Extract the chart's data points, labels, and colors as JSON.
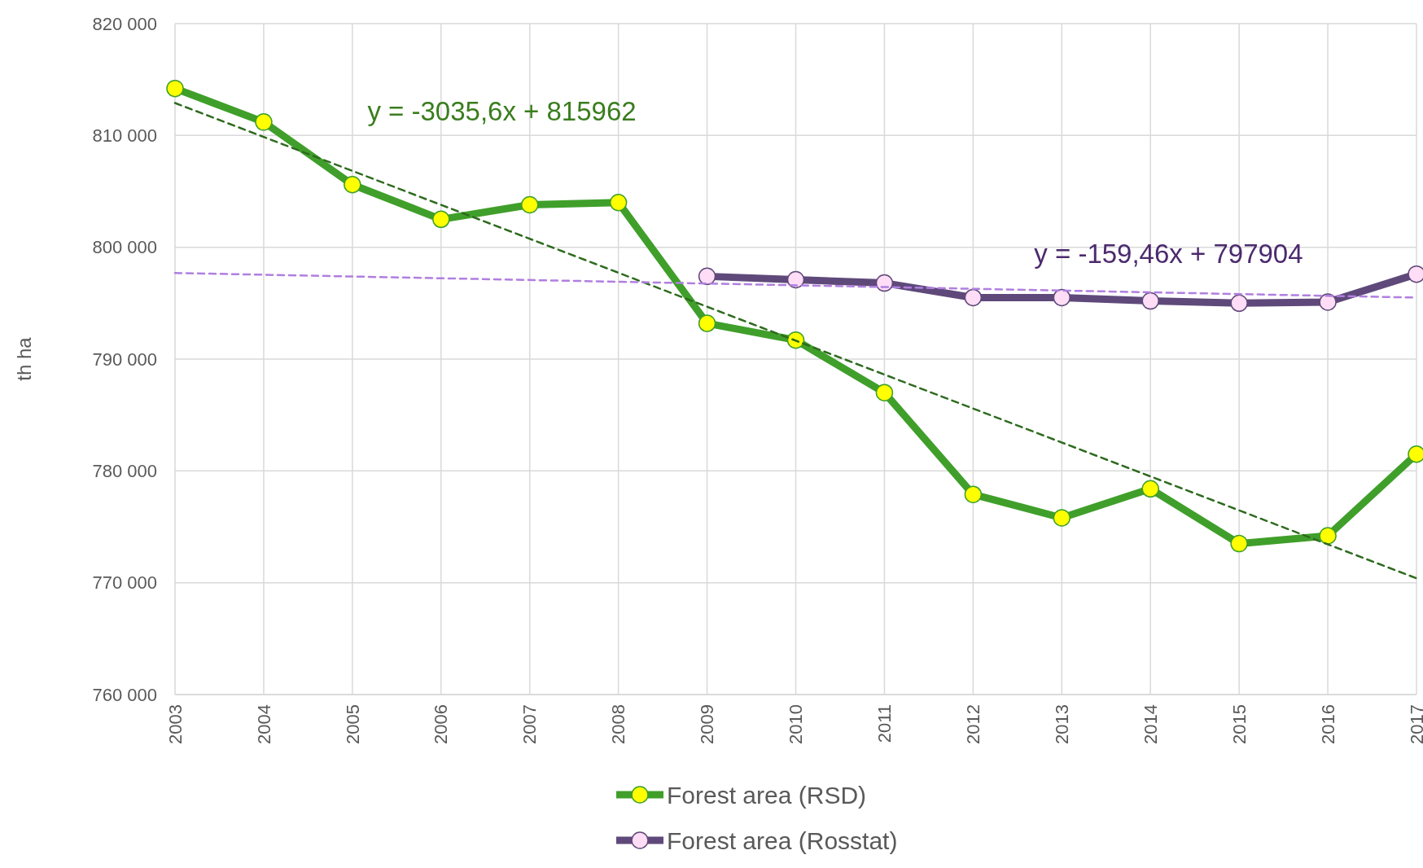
{
  "chart_data": {
    "type": "line",
    "ylabel": "th ha",
    "categories": [
      "2003",
      "2004",
      "2005",
      "2006",
      "2007",
      "2008",
      "2009",
      "2010",
      "2011",
      "2012",
      "2013",
      "2014",
      "2015",
      "2016",
      "2017"
    ],
    "ylim": [
      760000,
      820000
    ],
    "yticks": [
      {
        "value": 760000,
        "label": "760 000"
      },
      {
        "value": 770000,
        "label": "770 000"
      },
      {
        "value": 780000,
        "label": "780 000"
      },
      {
        "value": 790000,
        "label": "790 000"
      },
      {
        "value": 800000,
        "label": "800 000"
      },
      {
        "value": 810000,
        "label": "810 000"
      },
      {
        "value": 820000,
        "label": "820 000"
      }
    ],
    "grid": true,
    "legend": "bottom",
    "marker": "circle",
    "line_style": "solid",
    "series": [
      {
        "name": "Forest area (RSD)",
        "color": "#3f9f2a",
        "values": [
          814200,
          811200,
          805600,
          802500,
          803800,
          804000,
          793200,
          791700,
          787000,
          777900,
          775800,
          778400,
          773500,
          774200,
          781500
        ]
      },
      {
        "name": "Forest area (Rosstat)",
        "color": "#5f497a",
        "values": [
          null,
          null,
          null,
          null,
          null,
          null,
          797400,
          797100,
          796800,
          795500,
          795500,
          795200,
          795000,
          795100,
          797600
        ]
      },
      {
        "type": "line",
        "color": "#2e6b1e",
        "line_style": "dashed",
        "marker": "none",
        "values": [
          812900,
          null,
          null,
          null,
          null,
          null,
          null,
          null,
          null,
          null,
          null,
          null,
          null,
          null,
          770400
        ]
      },
      {
        "type": "line",
        "color": "#b07fe0",
        "line_style": "dashed",
        "marker": "none",
        "values": [
          797700,
          null,
          null,
          null,
          null,
          null,
          null,
          null,
          null,
          null,
          null,
          null,
          null,
          null,
          795500
        ]
      }
    ],
    "annotations": [
      "y = -3035,6x + 815962",
      "y = -159,46x + 797904"
    ]
  }
}
